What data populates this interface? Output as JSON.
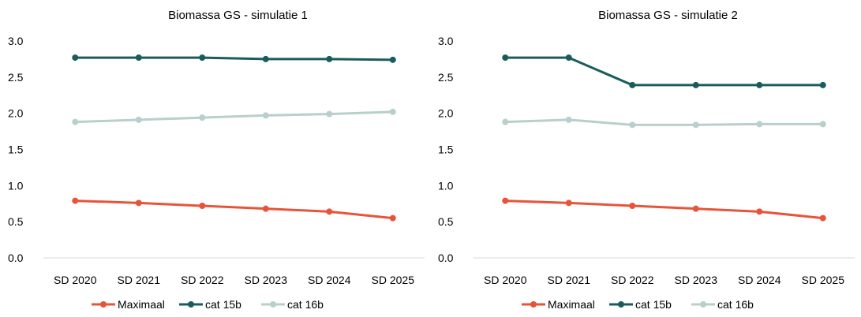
{
  "chart_data": [
    {
      "type": "line",
      "title": "Biomassa GS - simulatie 1",
      "categories": [
        "SD 2020",
        "SD 2021",
        "SD 2022",
        "SD 2023",
        "SD 2024",
        "SD 2025"
      ],
      "ylim": [
        0,
        3.0
      ],
      "yticks": [
        "0.0",
        "0.5",
        "1.0",
        "1.5",
        "2.0",
        "2.5",
        "3.0"
      ],
      "grid": false,
      "legend_position": "bottom",
      "series": [
        {
          "name": "Maximaal",
          "color": "#e8543a",
          "values": [
            0.79,
            0.76,
            0.72,
            0.68,
            0.64,
            0.55
          ]
        },
        {
          "name": "cat 15b",
          "color": "#1a5c5c",
          "values": [
            2.77,
            2.77,
            2.77,
            2.75,
            2.75,
            2.74
          ]
        },
        {
          "name": "cat 16b",
          "color": "#b8cfcc",
          "values": [
            1.88,
            1.91,
            1.94,
            1.97,
            1.99,
            2.02
          ]
        }
      ]
    },
    {
      "type": "line",
      "title": "Biomassa GS - simulatie 2",
      "categories": [
        "SD 2020",
        "SD 2021",
        "SD 2022",
        "SD 2023",
        "SD 2024",
        "SD 2025"
      ],
      "ylim": [
        0,
        3.0
      ],
      "yticks": [
        "0.0",
        "0.5",
        "1.0",
        "1.5",
        "2.0",
        "2.5",
        "3.0"
      ],
      "grid": false,
      "legend_position": "bottom",
      "series": [
        {
          "name": "Maximaal",
          "color": "#e8543a",
          "values": [
            0.79,
            0.76,
            0.72,
            0.68,
            0.64,
            0.55
          ]
        },
        {
          "name": "cat 15b",
          "color": "#1a5c5c",
          "values": [
            2.77,
            2.77,
            2.39,
            2.39,
            2.39,
            2.39
          ]
        },
        {
          "name": "cat 16b",
          "color": "#b8cfcc",
          "values": [
            1.88,
            1.91,
            1.84,
            1.84,
            1.85,
            1.85
          ]
        }
      ]
    }
  ]
}
